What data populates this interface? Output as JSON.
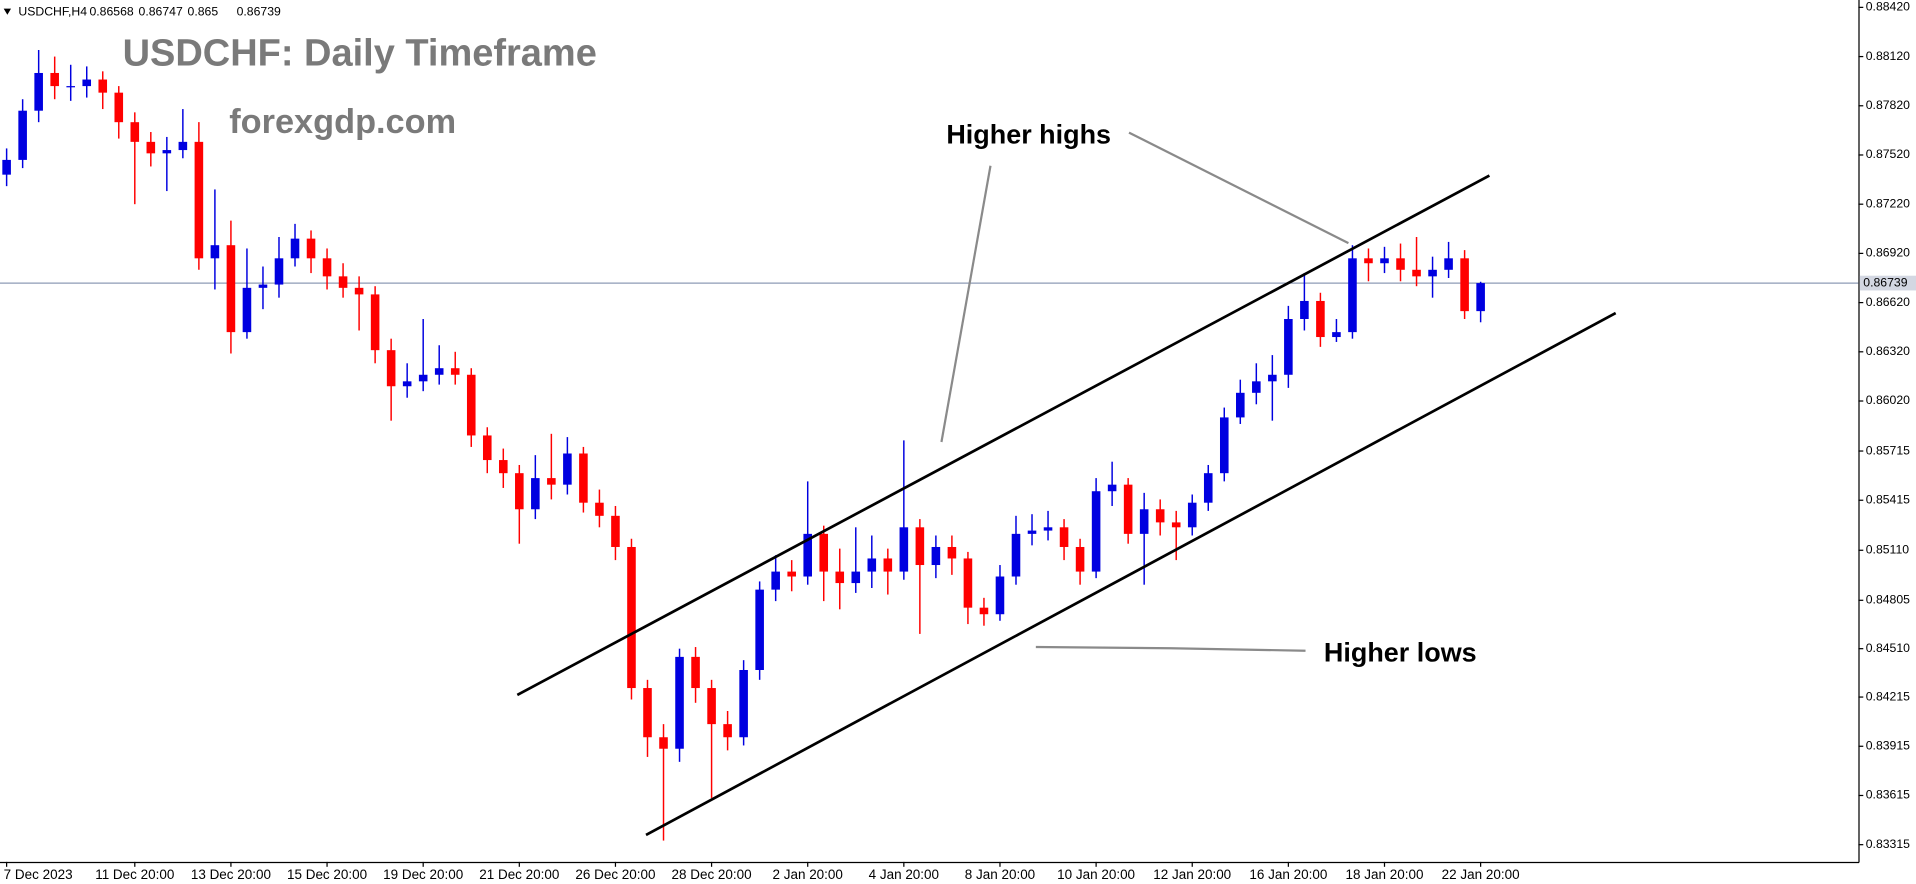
{
  "chart_data": {
    "type": "candlestick",
    "symbol": "USDCHF,H4",
    "title": "USDCHF: Daily Timeframe",
    "subtitle": "forexgdp.com",
    "annotations": [
      "Higher highs",
      "Higher lows"
    ],
    "up_color": "#0000e0",
    "down_color": "#ff0000",
    "price_line": true,
    "categories": [
      "7 Dec 2023",
      null,
      null,
      null,
      null,
      null,
      null,
      null,
      "11 Dec 20:00",
      null,
      null,
      null,
      null,
      null,
      "13 Dec 20:00",
      null,
      null,
      null,
      null,
      null,
      "15 Dec 20:00",
      null,
      null,
      null,
      null,
      null,
      "19 Dec 20:00",
      null,
      null,
      null,
      null,
      null,
      "21 Dec 20:00",
      null,
      null,
      null,
      null,
      null,
      "26 Dec 20:00",
      null,
      null,
      null,
      null,
      null,
      "28 Dec 20:00",
      null,
      null,
      null,
      null,
      null,
      "2 Jan 20:00",
      null,
      null,
      null,
      null,
      null,
      "4 Jan 20:00",
      null,
      null,
      null,
      null,
      null,
      "8 Jan 20:00",
      null,
      null,
      null,
      null,
      null,
      "10 Jan 20:00",
      null,
      null,
      null,
      null,
      null,
      "12 Jan 20:00",
      null,
      null,
      null,
      null,
      null,
      "16 Jan 20:00",
      null,
      null,
      null,
      null,
      null,
      "18 Jan 20:00",
      null,
      null,
      null,
      null,
      null,
      "22 Jan 20:00"
    ],
    "open": [
      0.874,
      0.8749,
      0.8779,
      0.8802,
      0.8794,
      0.8794,
      0.8798,
      0.879,
      0.8772,
      0.876,
      0.8753,
      0.8755,
      0.876,
      0.8689,
      0.8697,
      0.8644,
      0.8671,
      0.8673,
      0.8689,
      0.8701,
      0.8689,
      0.8678,
      0.8671,
      0.8667,
      0.8633,
      0.8611,
      0.8614,
      0.8618,
      0.8622,
      0.8618,
      0.8581,
      0.8566,
      0.8558,
      0.8536,
      0.8555,
      0.8551,
      0.857,
      0.854,
      0.8532,
      0.8513,
      0.8427,
      0.8397,
      0.839,
      0.8446,
      0.8427,
      0.8405,
      0.8397,
      0.8438,
      0.8487,
      0.8498,
      0.8495,
      0.8521,
      0.8498,
      0.8491,
      0.8498,
      0.8506,
      0.8498,
      0.8525,
      0.8502,
      0.8513,
      0.8506,
      0.8476,
      0.8472,
      0.8495,
      0.8521,
      0.8523,
      0.8525,
      0.8513,
      0.8498,
      0.8547,
      0.8551,
      0.8521,
      0.8536,
      0.8528,
      0.8525,
      0.854,
      0.8558,
      0.8592,
      0.8607,
      0.8614,
      0.8618,
      0.8652,
      0.8663,
      0.8641,
      0.8644,
      0.8689,
      0.8686,
      0.8689,
      0.8682,
      0.8678,
      0.8682,
      0.8689,
      0.86568
    ],
    "high": [
      0.8756,
      0.8786,
      0.8816,
      0.8812,
      0.8807,
      0.8806,
      0.8803,
      0.8794,
      0.8778,
      0.8766,
      0.8763,
      0.878,
      0.8772,
      0.8731,
      0.8712,
      0.8695,
      0.8684,
      0.8702,
      0.871,
      0.8706,
      0.8695,
      0.8686,
      0.8678,
      0.8672,
      0.864,
      0.8625,
      0.8652,
      0.8636,
      0.8632,
      0.8622,
      0.8586,
      0.8573,
      0.8563,
      0.8569,
      0.8582,
      0.858,
      0.8574,
      0.8548,
      0.8538,
      0.8518,
      0.8432,
      0.8405,
      0.8451,
      0.8452,
      0.8432,
      0.8413,
      0.8444,
      0.8492,
      0.8508,
      0.8505,
      0.8553,
      0.8526,
      0.8512,
      0.8525,
      0.852,
      0.8512,
      0.8578,
      0.853,
      0.852,
      0.852,
      0.851,
      0.8482,
      0.8502,
      0.8532,
      0.8533,
      0.8535,
      0.853,
      0.8518,
      0.8555,
      0.8565,
      0.8555,
      0.8546,
      0.8542,
      0.8535,
      0.8545,
      0.8563,
      0.8598,
      0.8615,
      0.8625,
      0.863,
      0.866,
      0.868,
      0.8668,
      0.8652,
      0.8697,
      0.8695,
      0.8696,
      0.8698,
      0.8702,
      0.869,
      0.8699,
      0.8694,
      0.86747
    ],
    "low": [
      0.8733,
      0.8744,
      0.8772,
      0.8786,
      0.8785,
      0.8787,
      0.878,
      0.8762,
      0.8722,
      0.8745,
      0.873,
      0.875,
      0.8682,
      0.867,
      0.8631,
      0.864,
      0.8658,
      0.8665,
      0.8684,
      0.868,
      0.867,
      0.8665,
      0.8645,
      0.8625,
      0.859,
      0.8604,
      0.8608,
      0.8612,
      0.8612,
      0.8574,
      0.8558,
      0.8549,
      0.8515,
      0.853,
      0.8542,
      0.8545,
      0.8534,
      0.8525,
      0.8505,
      0.842,
      0.8385,
      0.8334,
      0.8382,
      0.8418,
      0.836,
      0.8389,
      0.8392,
      0.8432,
      0.848,
      0.8486,
      0.849,
      0.848,
      0.8475,
      0.8485,
      0.8488,
      0.8484,
      0.8493,
      0.846,
      0.8494,
      0.8496,
      0.8466,
      0.8465,
      0.8468,
      0.849,
      0.8514,
      0.8517,
      0.8505,
      0.849,
      0.8494,
      0.8538,
      0.8515,
      0.849,
      0.852,
      0.8505,
      0.852,
      0.8535,
      0.8553,
      0.8588,
      0.86,
      0.859,
      0.861,
      0.8645,
      0.8635,
      0.8638,
      0.864,
      0.8675,
      0.868,
      0.8675,
      0.8672,
      0.8665,
      0.8677,
      0.8652,
      0.865
    ],
    "close": [
      0.8749,
      0.8779,
      0.8802,
      0.8794,
      0.8794,
      0.8798,
      0.879,
      0.8772,
      0.876,
      0.8753,
      0.8755,
      0.876,
      0.8689,
      0.8697,
      0.8644,
      0.8671,
      0.8673,
      0.8689,
      0.8701,
      0.8689,
      0.8678,
      0.8671,
      0.8667,
      0.8633,
      0.8611,
      0.8614,
      0.8618,
      0.8622,
      0.8618,
      0.8581,
      0.8566,
      0.8558,
      0.8536,
      0.8555,
      0.8551,
      0.857,
      0.854,
      0.8532,
      0.8513,
      0.8427,
      0.8397,
      0.839,
      0.8446,
      0.8427,
      0.8405,
      0.8397,
      0.8438,
      0.8487,
      0.8498,
      0.8495,
      0.8521,
      0.8498,
      0.8491,
      0.8498,
      0.8506,
      0.8498,
      0.8525,
      0.8502,
      0.8513,
      0.8506,
      0.8476,
      0.8472,
      0.8495,
      0.8521,
      0.8523,
      0.8525,
      0.8513,
      0.8498,
      0.8547,
      0.8551,
      0.8521,
      0.8536,
      0.8528,
      0.8525,
      0.854,
      0.8558,
      0.8592,
      0.8607,
      0.8614,
      0.8618,
      0.8652,
      0.8663,
      0.8641,
      0.8644,
      0.8689,
      0.8686,
      0.8689,
      0.8682,
      0.8678,
      0.8682,
      0.8689,
      0.86568,
      0.86739
    ],
    "ylim": [
      0.8321,
      0.8842
    ],
    "yticks": [
      {
        "value": 0.8842,
        "label": "0.88420"
      },
      {
        "value": 0.8812,
        "label": "0.88120"
      },
      {
        "value": 0.8782,
        "label": "0.87820"
      },
      {
        "value": 0.8752,
        "label": "0.87520"
      },
      {
        "value": 0.8722,
        "label": "0.87220"
      },
      {
        "value": 0.8692,
        "label": "0.86920"
      },
      {
        "value": 0.8662,
        "label": "0.86620"
      },
      {
        "value": 0.8632,
        "label": "0.86320"
      },
      {
        "value": 0.8602,
        "label": "0.86020"
      },
      0.85715,
      0.85415,
      {
        "value": 0.8511,
        "label": "0.85110"
      },
      0.84805,
      {
        "value": 0.8451,
        "label": "0.84510"
      },
      0.84215,
      0.83915,
      0.83615,
      0.83315
    ]
  }
}
